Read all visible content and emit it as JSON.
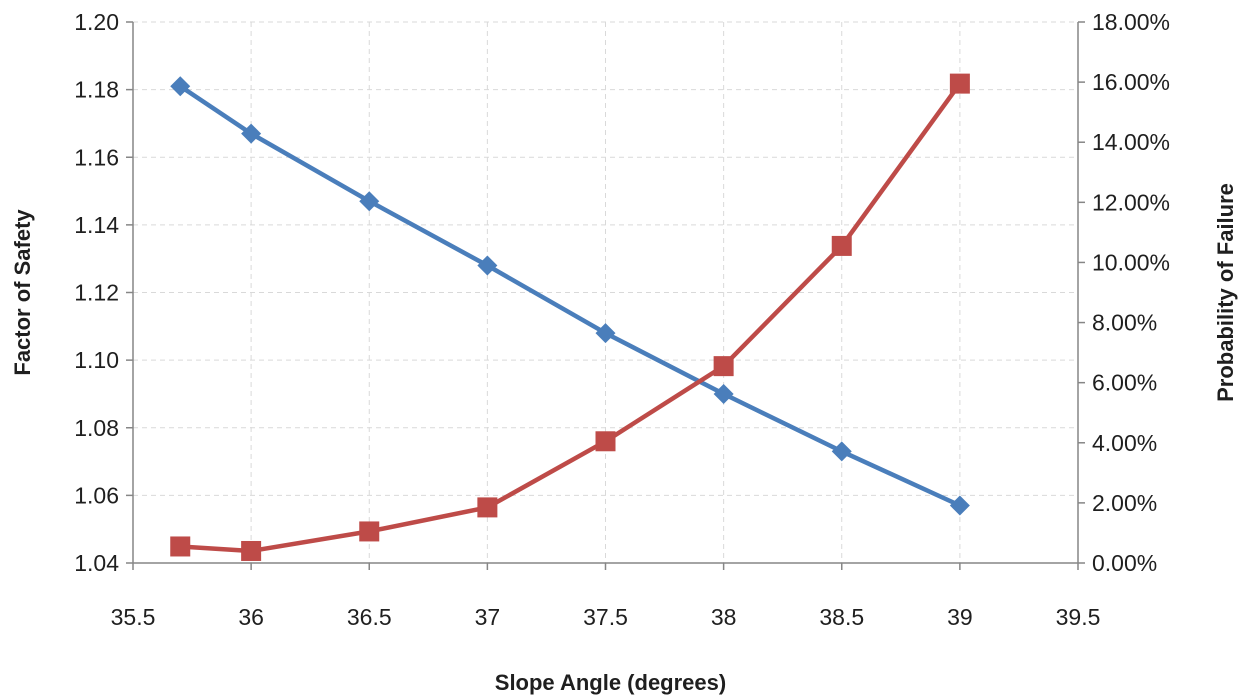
{
  "chart_data": {
    "type": "line",
    "title": "",
    "xlabel": "Slope Angle (degrees)",
    "ylabel": "Factor of Safety",
    "y2label": "Probability of Failure",
    "xlim": [
      35.5,
      39.5
    ],
    "ylim": [
      1.04,
      1.2
    ],
    "y2lim": [
      0,
      0.18
    ],
    "grid": true,
    "legend": "none",
    "x_ticks": [
      35.5,
      36,
      36.5,
      37,
      37.5,
      38,
      38.5,
      39,
      39.5
    ],
    "x_tick_labels": [
      "35.5",
      "36",
      "36.5",
      "37",
      "37.5",
      "38",
      "38.5",
      "39",
      "39.5"
    ],
    "y_ticks": [
      1.04,
      1.06,
      1.08,
      1.1,
      1.12,
      1.14,
      1.16,
      1.18,
      1.2
    ],
    "y_tick_labels": [
      "1.04",
      "1.06",
      "1.08",
      "1.10",
      "1.12",
      "1.14",
      "1.16",
      "1.18",
      "1.20"
    ],
    "y2_ticks": [
      0,
      0.02,
      0.04,
      0.06,
      0.08,
      0.1,
      0.12,
      0.14,
      0.16,
      0.18
    ],
    "y2_tick_labels": [
      "0.00%",
      "2.00%",
      "4.00%",
      "6.00%",
      "8.00%",
      "10.00%",
      "12.00%",
      "14.00%",
      "16.00%",
      "18.00%"
    ],
    "series": [
      {
        "axis": "left",
        "color": "#4a7ebb",
        "marker": "diamond",
        "x": [
          35.7,
          36,
          36.5,
          37,
          37.5,
          38,
          38.5,
          39
        ],
        "values": [
          1.181,
          1.167,
          1.147,
          1.128,
          1.108,
          1.09,
          1.073,
          1.057
        ]
      },
      {
        "axis": "right",
        "color": "#be4b48",
        "marker": "square",
        "x": [
          35.7,
          36,
          36.5,
          37,
          37.5,
          38,
          38.5,
          39
        ],
        "values": [
          0.0055,
          0.004,
          0.0105,
          0.0185,
          0.0405,
          0.0655,
          0.1055,
          0.1595
        ]
      }
    ]
  }
}
